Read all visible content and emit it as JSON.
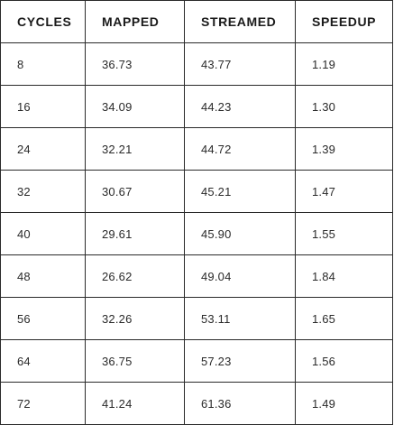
{
  "table": {
    "columns": [
      "CYCLES",
      "MAPPED",
      "STREAMED",
      "SPEEDUP"
    ],
    "rows": [
      [
        "8",
        "36.73",
        "43.77",
        "1.19"
      ],
      [
        "16",
        "34.09",
        "44.23",
        "1.30"
      ],
      [
        "24",
        "32.21",
        "44.72",
        "1.39"
      ],
      [
        "32",
        "30.67",
        "45.21",
        "1.47"
      ],
      [
        "40",
        "29.61",
        "45.90",
        "1.55"
      ],
      [
        "48",
        "26.62",
        "49.04",
        "1.84"
      ],
      [
        "56",
        "32.26",
        "53.11",
        "1.65"
      ],
      [
        "64",
        "36.75",
        "57.23",
        "1.56"
      ],
      [
        "72",
        "41.24",
        "61.36",
        "1.49"
      ]
    ]
  }
}
